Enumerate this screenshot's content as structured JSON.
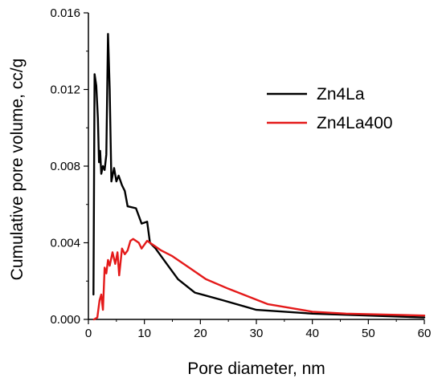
{
  "chart_data": {
    "type": "line",
    "title": "",
    "xlabel": "Pore diameter, nm",
    "ylabel": "Cumulative pore volume, cc/g",
    "xlim": [
      0,
      60
    ],
    "ylim": [
      0,
      0.016
    ],
    "x_ticks": [
      0,
      10,
      20,
      30,
      40,
      50,
      60
    ],
    "y_ticks": [
      "0.000",
      "0.004",
      "0.008",
      "0.012",
      "0.016"
    ],
    "grid": false,
    "legend_position": "top-right",
    "series": [
      {
        "name": "Zn4La",
        "color": "#000000",
        "points": [
          [
            0.9,
            0.0013
          ],
          [
            1.1,
            0.0128
          ],
          [
            1.4,
            0.0122
          ],
          [
            1.7,
            0.0105
          ],
          [
            1.9,
            0.0082
          ],
          [
            2.1,
            0.0088
          ],
          [
            2.3,
            0.0076
          ],
          [
            2.6,
            0.008
          ],
          [
            2.9,
            0.0078
          ],
          [
            3.2,
            0.0086
          ],
          [
            3.5,
            0.0149
          ],
          [
            3.8,
            0.012
          ],
          [
            4.1,
            0.0072
          ],
          [
            4.6,
            0.0079
          ],
          [
            5.0,
            0.0072
          ],
          [
            5.4,
            0.0075
          ],
          [
            6.0,
            0.007
          ],
          [
            6.5,
            0.0067
          ],
          [
            7.0,
            0.0059
          ],
          [
            8.5,
            0.0058
          ],
          [
            9.5,
            0.005
          ],
          [
            10.5,
            0.0051
          ],
          [
            11.0,
            0.004
          ],
          [
            12.0,
            0.0037
          ],
          [
            14.0,
            0.0029
          ],
          [
            16.0,
            0.0021
          ],
          [
            19.0,
            0.0014
          ],
          [
            24.0,
            0.001
          ],
          [
            30.0,
            0.0005
          ],
          [
            40.0,
            0.0003
          ],
          [
            50.0,
            0.0002
          ],
          [
            60.0,
            0.0001
          ]
        ]
      },
      {
        "name": "Zn4La400",
        "color": "#e41a1a",
        "points": [
          [
            1.0,
            0.0
          ],
          [
            1.6,
            0.0001
          ],
          [
            2.0,
            0.001
          ],
          [
            2.3,
            0.0013
          ],
          [
            2.6,
            0.0005
          ],
          [
            2.9,
            0.0027
          ],
          [
            3.2,
            0.0024
          ],
          [
            3.5,
            0.0031
          ],
          [
            3.8,
            0.0028
          ],
          [
            4.3,
            0.0035
          ],
          [
            4.8,
            0.0029
          ],
          [
            5.2,
            0.0035
          ],
          [
            5.5,
            0.0023
          ],
          [
            6.0,
            0.0037
          ],
          [
            6.5,
            0.0034
          ],
          [
            7.0,
            0.0036
          ],
          [
            7.5,
            0.0041
          ],
          [
            8.0,
            0.0042
          ],
          [
            9.0,
            0.004
          ],
          [
            9.5,
            0.0037
          ],
          [
            10.5,
            0.0041
          ],
          [
            11.5,
            0.0039
          ],
          [
            13.0,
            0.0036
          ],
          [
            15.0,
            0.0033
          ],
          [
            18.0,
            0.0027
          ],
          [
            21.0,
            0.0021
          ],
          [
            25.0,
            0.0016
          ],
          [
            32.0,
            0.0008
          ],
          [
            40.0,
            0.0004
          ],
          [
            46.0,
            0.0003
          ],
          [
            60.0,
            0.0002
          ]
        ]
      }
    ]
  }
}
